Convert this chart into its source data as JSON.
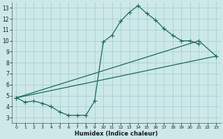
{
  "xlabel": "Humidex (Indice chaleur)",
  "bg_color": "#cce8e8",
  "grid_color": "#aacfcf",
  "line_color": "#1a6b5a",
  "xlim": [
    -0.5,
    23.5
  ],
  "ylim": [
    2.5,
    13.5
  ],
  "xticks": [
    0,
    1,
    2,
    3,
    4,
    5,
    6,
    7,
    8,
    9,
    10,
    11,
    12,
    13,
    14,
    15,
    16,
    17,
    18,
    19,
    20,
    21,
    22,
    23
  ],
  "yticks": [
    3,
    4,
    5,
    6,
    7,
    8,
    9,
    10,
    11,
    12,
    13
  ],
  "curve1_x": [
    0,
    1,
    2,
    3,
    4,
    5,
    6,
    7,
    8,
    9,
    10,
    11,
    12,
    13,
    14,
    15,
    16,
    17,
    18,
    19,
    20,
    21
  ],
  "curve1_y": [
    4.8,
    4.4,
    4.5,
    4.3,
    4.0,
    3.5,
    3.2,
    3.2,
    3.2,
    4.5,
    9.9,
    10.5,
    11.8,
    12.6,
    13.2,
    12.5,
    11.9,
    11.1,
    10.5,
    10.0,
    10.0,
    9.7
  ],
  "curve2_x": [
    0,
    21,
    23
  ],
  "curve2_y": [
    4.8,
    10.0,
    8.6
  ],
  "curve3_x": [
    0,
    23
  ],
  "curve3_y": [
    4.8,
    8.6
  ],
  "marker_size": 2.5,
  "linewidth": 0.9
}
